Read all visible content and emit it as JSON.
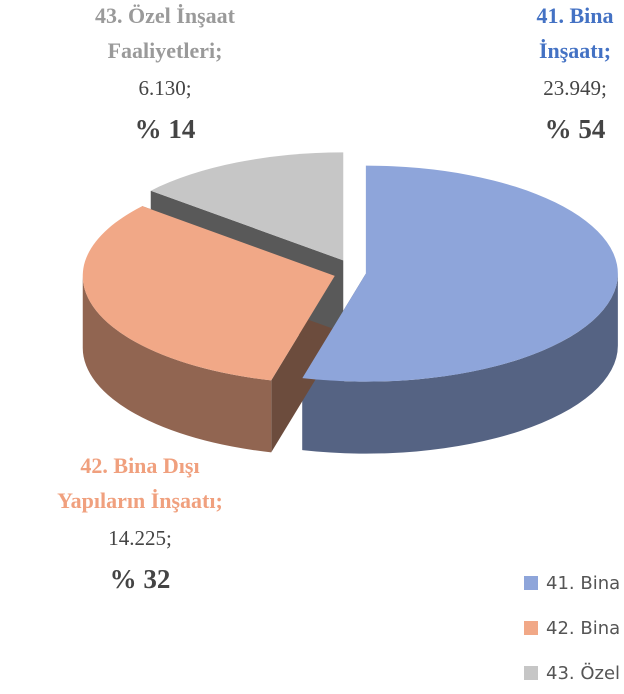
{
  "chart_data": {
    "type": "pie3d",
    "categories": [
      "41. Bina İnşaatı",
      "42. Bina Dışı Yapıların İnşaatı",
      "43. Özel İnşaat Faaliyetleri"
    ],
    "label_titles": [
      [
        "41. Bina",
        "İnşaatı;"
      ],
      [
        "42. Bina Dışı",
        "Yapıların İnşaatı;"
      ],
      [
        "43. Özel İnşaat",
        "Faaliyetleri;"
      ]
    ],
    "values": [
      23949,
      14225,
      6130
    ],
    "value_labels": [
      "23.949;",
      "14.225;",
      "6.130;"
    ],
    "percents": [
      54,
      32,
      14
    ],
    "percent_labels": [
      "% 54",
      "% 32",
      "% 14"
    ],
    "colors": [
      "#8ea5da",
      "#f1a887",
      "#c6c6c6"
    ],
    "label_colors": [
      "#4472c4",
      "#f0a07e",
      "#9a9a9a"
    ],
    "legend": "right"
  }
}
